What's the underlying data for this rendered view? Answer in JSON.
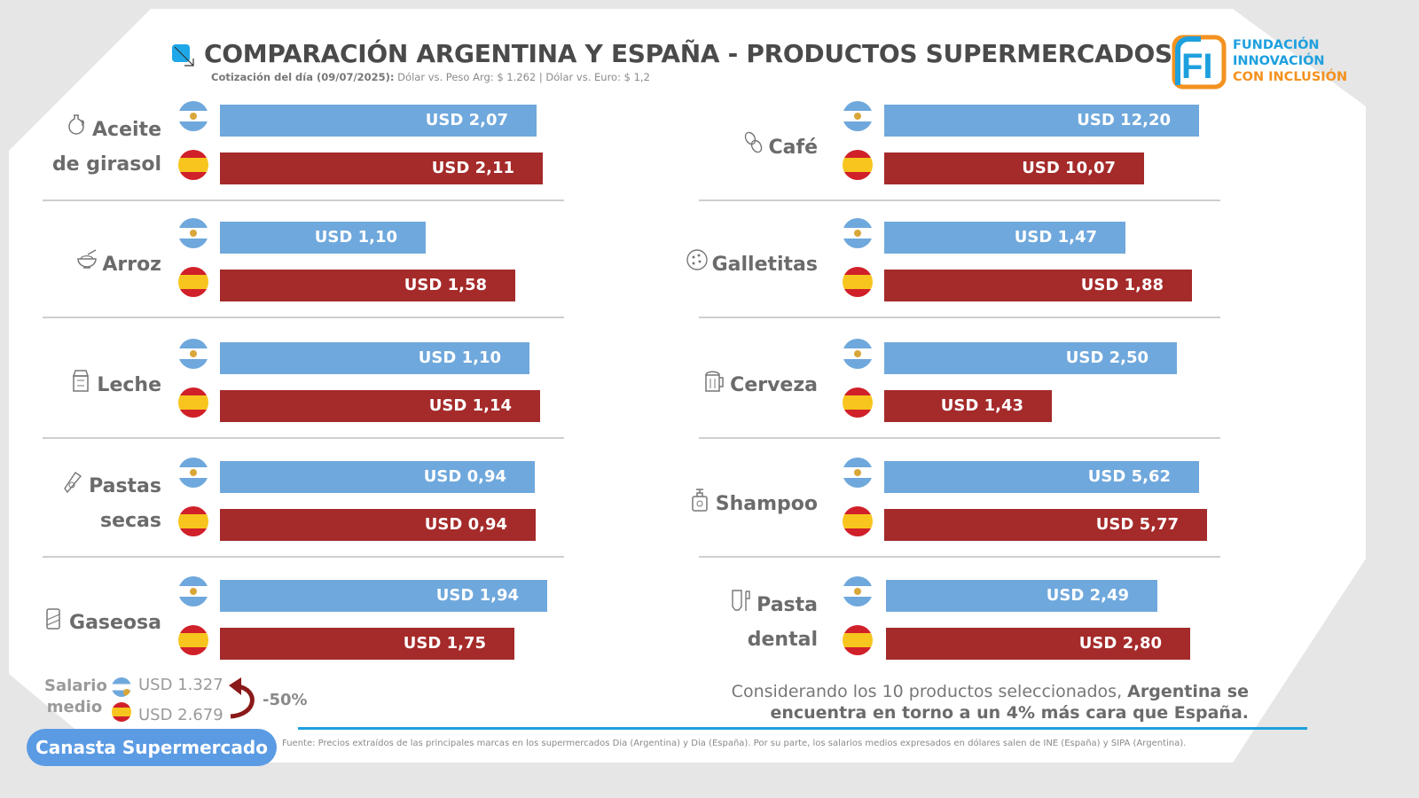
{
  "header": {
    "title": "COMPARACIÓN ARGENTINA Y ESPAÑA - PRODUCTOS SUPERMERCADOS",
    "subtitle_bold": "Cotización del día (09/07/2025):",
    "subtitle_rest": " Dólar vs. Peso Arg: $ 1.262 | Dólar vs. Euro: $ 1,2",
    "title_icon": "square-arrow-icon"
  },
  "logo": {
    "mark": "FI",
    "line1": "FUNDACIÓN",
    "line2": "INNOVACIÓN",
    "line3": "CON INCLUSIÓN"
  },
  "colors": {
    "argentina": "#6fa8dc",
    "espana": "#a52a2a",
    "accent": "#1ea0de",
    "logo_orange": "#f39220",
    "pill": "#5b9be3"
  },
  "chart_data": {
    "type": "bar",
    "title": "COMPARACIÓN ARGENTINA Y ESPAÑA - PRODUCTOS SUPERMERCADOS",
    "unit": "USD",
    "legend": [
      "Argentina",
      "España"
    ],
    "note": "Bar fill fractions are per-product visual lengths (bars not on a common scale)",
    "categories": [
      "Aceite de girasol",
      "Arroz",
      "Leche",
      "Pastas secas",
      "Gaseosa",
      "Café",
      "Galletitas",
      "Cerveza",
      "Shampoo",
      "Pasta dental"
    ],
    "series": [
      {
        "name": "Argentina",
        "values": [
          2.07,
          1.1,
          1.1,
          0.94,
          1.94,
          12.2,
          1.47,
          2.5,
          5.62,
          2.49
        ],
        "labels": [
          "USD 2,07",
          "USD 1,10",
          "USD 1,10",
          "USD 0,94",
          "USD 1,94",
          "USD 12,20",
          "USD 1,47",
          "USD 2,50",
          "USD 5,62",
          "USD 2,49"
        ],
        "fill": [
          0.965,
          0.627,
          0.943,
          0.959,
          0.997,
          0.959,
          0.735,
          0.892,
          0.959,
          0.827
        ]
      },
      {
        "name": "España",
        "values": [
          2.11,
          1.58,
          1.14,
          0.94,
          1.75,
          10.07,
          1.88,
          1.43,
          5.77,
          2.8
        ],
        "labels": [
          "USD 2,11",
          "USD 1,58",
          "USD 1,14",
          "USD 0,94",
          "USD 1,75",
          "USD 10,07",
          "USD 1,88",
          "USD 1,43",
          "USD 5,77",
          "USD 2,80"
        ],
        "fill": [
          0.984,
          0.9,
          0.976,
          0.962,
          0.897,
          0.792,
          0.938,
          0.511,
          0.984,
          0.927
        ]
      }
    ]
  },
  "products": [
    {
      "label_lines": [
        "Aceite",
        "de girasol"
      ],
      "icon": "oil-bottle-icon"
    },
    {
      "label_lines": [
        "Arroz"
      ],
      "icon": "rice-bowl-icon"
    },
    {
      "label_lines": [
        "Leche"
      ],
      "icon": "milk-carton-icon"
    },
    {
      "label_lines": [
        "Pastas",
        "secas"
      ],
      "icon": "pasta-package-icon"
    },
    {
      "label_lines": [
        "Gaseosa"
      ],
      "icon": "soda-can-icon"
    },
    {
      "label_lines": [
        "Café"
      ],
      "icon": "coffee-beans-icon"
    },
    {
      "label_lines": [
        "Galletitas"
      ],
      "icon": "cookie-icon"
    },
    {
      "label_lines": [
        "Cerveza"
      ],
      "icon": "beer-mug-icon"
    },
    {
      "label_lines": [
        "Shampoo"
      ],
      "icon": "shampoo-bottle-icon"
    },
    {
      "label_lines": [
        "Pasta",
        "dental"
      ],
      "icon": "toothpaste-icon"
    }
  ],
  "salary": {
    "label_line1": "Salario",
    "label_line2": "medio",
    "argentina": "USD 1.327",
    "espana": "USD 2.679",
    "difference": "-50%",
    "arrow_icon": "curved-arrow-icon"
  },
  "conclusion": {
    "normal": "Considerando los 10 productos seleccionados, ",
    "bold": "Argentina se encuentra en torno a un 4% más cara que España."
  },
  "footer": {
    "pill_label": "Canasta Supermercado",
    "source": "Fuente: Precios extraídos de las principales marcas en los supermercados Dia (Argentina) y Dia (España). Por su parte, los salarios medios expresados en dólares salen de INE (España) y SIPA (Argentina)."
  }
}
